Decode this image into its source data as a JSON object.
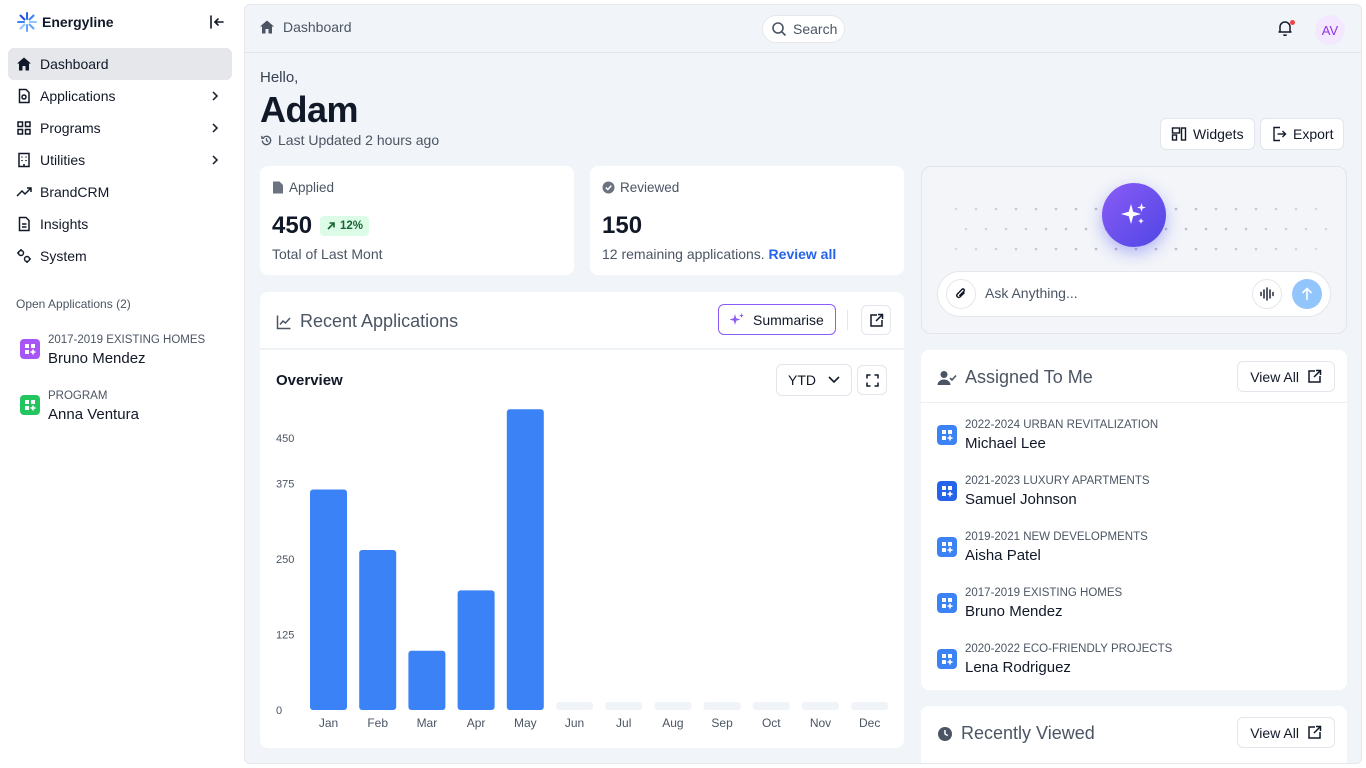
{
  "brand": {
    "name": "Energyline"
  },
  "sidebar": {
    "items": [
      {
        "label": "Dashboard",
        "icon": "home-icon",
        "active": true
      },
      {
        "label": "Applications",
        "icon": "file-icon",
        "has_children": true
      },
      {
        "label": "Programs",
        "icon": "grid-icon",
        "has_children": true
      },
      {
        "label": "Utilities",
        "icon": "building-icon",
        "has_children": true
      },
      {
        "label": "BrandCRM",
        "icon": "trend-icon"
      },
      {
        "label": "Insights",
        "icon": "document-icon"
      },
      {
        "label": "System",
        "icon": "settings-icon"
      }
    ],
    "open_title": "Open Applications (2)",
    "open_apps": [
      {
        "category": "2017-2019 EXISTING HOMES",
        "name": "Bruno Mendez",
        "color": "#a855f7"
      },
      {
        "category": "PROGRAM",
        "name": "Anna Ventura",
        "color": "#22c55e"
      }
    ]
  },
  "topbar": {
    "breadcrumb": "Dashboard",
    "search_label": "Search",
    "avatar_initials": "AV"
  },
  "greeting": {
    "hello": "Hello,",
    "name": "Adam",
    "updated": "Last Updated 2 hours ago"
  },
  "actions": {
    "widgets": "Widgets",
    "export": "Export"
  },
  "stats": {
    "applied": {
      "label": "Applied",
      "value": "450",
      "trend": "12%",
      "sub": "Total of Last Mont"
    },
    "reviewed": {
      "label": "Reviewed",
      "value": "150",
      "sub": "12 remaining applications.",
      "link": "Review all"
    }
  },
  "recent": {
    "title": "Recent Applications",
    "summarise": "Summarise",
    "overview": "Overview",
    "range": "YTD"
  },
  "chart_data": {
    "type": "bar",
    "categories": [
      "Jan",
      "Feb",
      "Mar",
      "Apr",
      "May",
      "Jun",
      "Jul",
      "Aug",
      "Sep",
      "Oct",
      "Nov",
      "Dec"
    ],
    "values": [
      365,
      265,
      98,
      198,
      498,
      0,
      0,
      0,
      0,
      0,
      0,
      0
    ],
    "yticks": [
      0,
      125,
      250,
      375,
      450
    ],
    "ylim": [
      0,
      500
    ],
    "bar_color": "#3b82f6",
    "empty_color": "#f0f3f7",
    "grid": false
  },
  "ai": {
    "placeholder": "Ask Anything..."
  },
  "assigned": {
    "title": "Assigned To Me",
    "view_all": "View All",
    "items": [
      {
        "category": "2022-2024 URBAN REVITALIZATION",
        "name": "Michael Lee"
      },
      {
        "category": "2021-2023 LUXURY APARTMENTS",
        "name": "Samuel Johnson"
      },
      {
        "category": "2019-2021 NEW DEVELOPMENTS",
        "name": "Aisha Patel"
      },
      {
        "category": "2017-2019 EXISTING HOMES",
        "name": "Bruno Mendez"
      },
      {
        "category": "2020-2022 ECO-FRIENDLY PROJECTS",
        "name": "Lena Rodriguez"
      }
    ]
  },
  "recently_viewed": {
    "title": "Recently Viewed",
    "view_all": "View All"
  }
}
